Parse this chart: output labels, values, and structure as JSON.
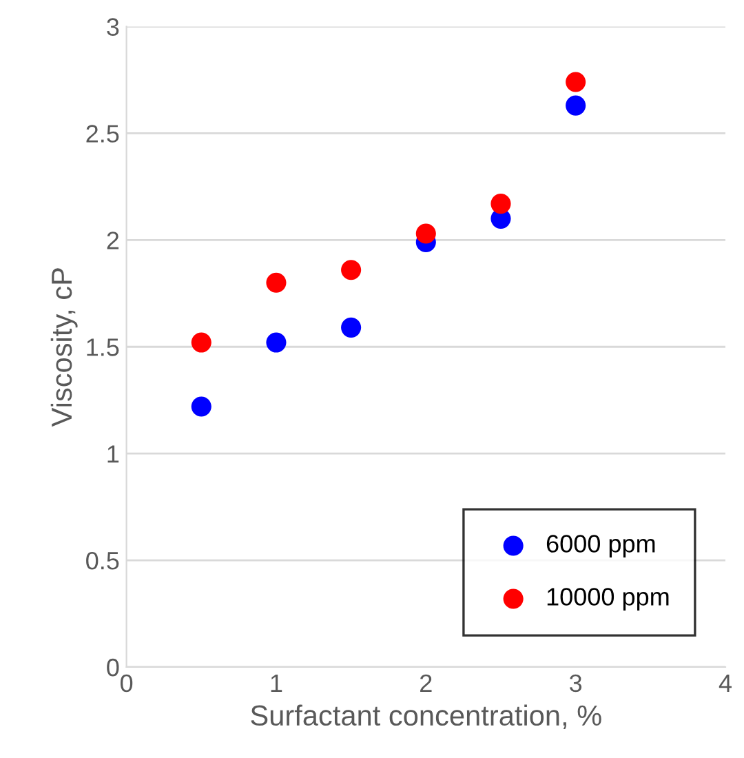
{
  "chart_data": {
    "type": "scatter",
    "xlabel": "Surfactant concentration, %",
    "ylabel": "Viscosity, cP",
    "x": [
      0.5,
      1,
      1.5,
      2,
      2.5,
      3
    ],
    "series": [
      {
        "name": "6000 ppm",
        "color": "#0000ff",
        "values": [
          1.22,
          1.52,
          1.59,
          1.99,
          2.1,
          2.63
        ]
      },
      {
        "name": "10000 ppm",
        "color": "#ff0000",
        "values": [
          1.52,
          1.8,
          1.86,
          2.03,
          2.17,
          2.74
        ]
      }
    ],
    "xlim": [
      0,
      4
    ],
    "xticks": [
      0,
      1,
      2,
      3,
      4
    ],
    "ylim": [
      0,
      3
    ],
    "yticks": [
      0,
      {
        "value": 0.5,
        "label": "0.5"
      },
      1,
      {
        "value": 1.5,
        "label": "1.5"
      },
      2,
      {
        "value": 2.5,
        "label": "2.5"
      },
      3
    ],
    "grid": "y",
    "legend": "bottom right",
    "marker": "circle"
  }
}
